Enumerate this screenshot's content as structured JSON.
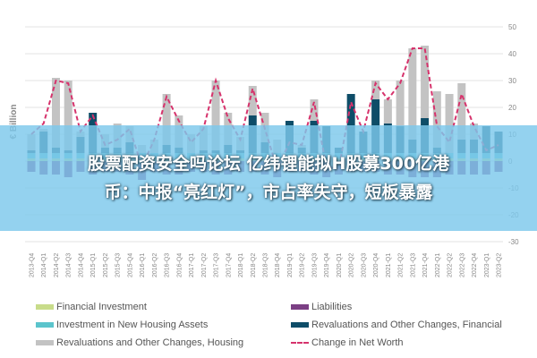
{
  "banner": {
    "line1": "股票配资安全吗论坛 亿纬锂能拟H股募300亿港",
    "line2": "币：中报“亮红灯”，市占率失守，短板暴露"
  },
  "chart_data": {
    "type": "bar",
    "stacked": true,
    "title": "",
    "xlabel": "",
    "ylabel": "€ Billion",
    "ylim": [
      -30,
      50
    ],
    "yticks": [
      50,
      40,
      30,
      20,
      10,
      0,
      -10,
      -20,
      -30
    ],
    "grid": true,
    "legend_position": "bottom",
    "categories": [
      "2013-Q4",
      "2014-Q1",
      "2014-Q2",
      "2014-Q3",
      "2014-Q4",
      "2015-Q1",
      "2015-Q2",
      "2015-Q3",
      "2015-Q4",
      "2016-Q1",
      "2016-Q2",
      "2016-Q3",
      "2016-Q4",
      "2017-Q1",
      "2017-Q2",
      "2017-Q3",
      "2017-Q4",
      "2018-Q1",
      "2018-Q2",
      "2018-Q3",
      "2018-Q4",
      "2019-Q1",
      "2019-Q2",
      "2019-Q3",
      "2019-Q4",
      "2020-Q1",
      "2020-Q2",
      "2020-Q3",
      "2020-Q4",
      "2021-Q1",
      "2021-Q2",
      "2021-Q3",
      "2021-Q4",
      "2022-Q1",
      "2022-Q2",
      "2022-Q3",
      "2022-Q4",
      "2023-Q1",
      "2023-Q2"
    ],
    "series": [
      {
        "name": "Financial Investment",
        "color": "#c8dc8a",
        "kind": "bar",
        "values": [
          1,
          1,
          1,
          1,
          1,
          1,
          1,
          1,
          1,
          1,
          1,
          1,
          1,
          1,
          1,
          1,
          1,
          1,
          1,
          1,
          1,
          1,
          1,
          1,
          1,
          1,
          1,
          1,
          1,
          1,
          1,
          1,
          1,
          1,
          1,
          1,
          1,
          1,
          1
        ]
      },
      {
        "name": "Investment in New Housing Assets",
        "color": "#5bc4cc",
        "kind": "bar",
        "values": [
          2,
          2,
          2,
          2,
          2,
          2,
          2,
          2,
          2,
          2,
          2,
          2,
          2,
          2,
          2,
          2,
          2,
          2,
          2,
          2,
          2,
          2,
          2,
          2,
          2,
          2,
          2,
          2,
          2,
          2,
          2,
          2,
          2,
          2,
          2,
          2,
          2,
          2,
          2
        ]
      },
      {
        "name": "Revaluations and Other Changes, Financial",
        "color": "#0e4d68",
        "kind": "bar",
        "values": [
          1,
          8,
          2,
          1,
          6,
          15,
          2,
          2,
          4,
          -1,
          0,
          3,
          2,
          0,
          1,
          1,
          3,
          1,
          14,
          4,
          0,
          12,
          2,
          12,
          10,
          2,
          22,
          8,
          20,
          11,
          10,
          5,
          13,
          2,
          0,
          5,
          5,
          10,
          8
        ]
      },
      {
        "name": "Revaluations and Other Changes, Housing",
        "color": "#c3c3c3",
        "kind": "bar",
        "values": [
          6,
          1,
          26,
          26,
          2,
          0,
          5,
          9,
          6,
          3,
          5,
          19,
          12,
          7,
          9,
          26,
          12,
          5,
          11,
          11,
          5,
          0,
          1,
          8,
          0,
          0,
          0,
          0,
          7,
          9,
          17,
          34,
          27,
          21,
          22,
          21,
          6,
          0,
          0
        ]
      },
      {
        "name": "Liabilities",
        "color": "#7b3f84",
        "kind": "bar",
        "values": [
          -4,
          -5,
          -5,
          -6,
          -4,
          -5,
          -4,
          -4,
          -5,
          -6,
          -4,
          -5,
          -5,
          -4,
          -4,
          -5,
          -5,
          -4,
          -4,
          -5,
          -6,
          -4,
          -4,
          -5,
          -6,
          -5,
          -4,
          -4,
          -4,
          -5,
          -5,
          -6,
          -6,
          -6,
          -5,
          -5,
          -5,
          -5,
          -4
        ]
      },
      {
        "name": "Change in Net Worth",
        "color": "#d6336c",
        "kind": "line",
        "values": [
          10,
          14,
          30,
          29,
          11,
          17,
          6,
          8,
          12,
          -2,
          8,
          24,
          15,
          7,
          12,
          30,
          16,
          8,
          27,
          12,
          -3,
          7,
          6,
          22,
          -2,
          -3,
          22,
          11,
          29,
          23,
          29,
          42,
          42,
          13,
          7,
          25,
          13,
          4,
          6
        ]
      }
    ]
  },
  "legend": [
    {
      "label": "Financial Investment",
      "series": 0
    },
    {
      "label": "Investment in New Housing Assets",
      "series": 1
    },
    {
      "label": "Revaluations and Other Changes, Housing",
      "series": 3
    },
    {
      "label": "Liabilities",
      "series": 4
    },
    {
      "label": "Revaluations and Other Changes, Financial",
      "series": 2
    },
    {
      "label": "Change in Net Worth",
      "series": 5
    }
  ]
}
